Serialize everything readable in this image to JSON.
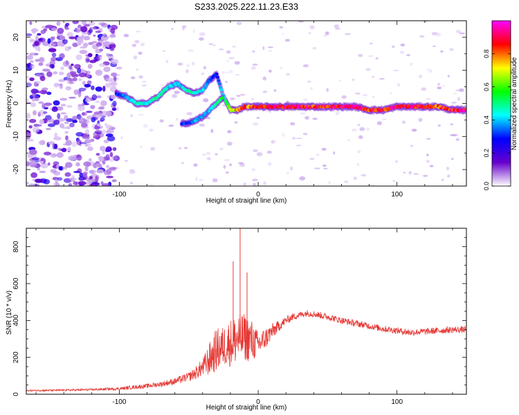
{
  "title": "S233.2025.222.11.23.E33",
  "chart_data": [
    {
      "type": "heatmap",
      "xlabel": "Height of straight line (km)",
      "ylabel": "Frequency (Hz)",
      "xlim": [
        -167,
        150
      ],
      "ylim": [
        -25,
        25
      ],
      "x_ticks": [
        -100,
        0,
        100
      ],
      "y_ticks": [
        -20,
        -10,
        0,
        10,
        20
      ],
      "colorbar": {
        "label": "Normalized spectral amplitude",
        "range": [
          0,
          1
        ],
        "ticks": [
          "0.0",
          "0.2",
          "0.4",
          "0.6",
          "0.8"
        ],
        "stops": [
          "#ffffff",
          "#6600cc",
          "#0000ff",
          "#00ffff",
          "#00ff00",
          "#ffff00",
          "#ff0000",
          "#ff00ff"
        ]
      },
      "noise_region_x": [
        -167,
        -102
      ],
      "ridge": {
        "x": [
          -102,
          -95,
          -88,
          -80,
          -72,
          -65,
          -58,
          -52,
          -46,
          -40,
          -35,
          -30,
          -25,
          -20,
          -15,
          -10,
          -5,
          0,
          10,
          20,
          30,
          40,
          50,
          60,
          70,
          80,
          90,
          100,
          110,
          120,
          130,
          140,
          150
        ],
        "frequency": [
          3,
          2,
          0,
          0,
          2,
          5,
          6,
          4,
          3,
          4,
          7,
          9,
          2,
          -2,
          -2,
          -1,
          -1,
          -1,
          -1,
          -1,
          -1,
          -1,
          -1,
          -1,
          -1,
          -2,
          -2,
          -1,
          -1,
          -1,
          -1,
          -2,
          -2
        ],
        "amplitude": [
          0.3,
          0.4,
          0.5,
          0.45,
          0.5,
          0.45,
          0.4,
          0.5,
          0.5,
          0.45,
          0.35,
          0.3,
          0.45,
          0.7,
          0.8,
          0.85,
          0.85,
          0.9,
          0.95,
          0.9,
          0.95,
          0.9,
          0.9,
          0.95,
          0.95,
          0.9,
          0.9,
          0.95,
          0.95,
          0.9,
          0.85,
          0.9,
          0.95
        ]
      },
      "lower_branch": {
        "x": [
          -55,
          -50,
          -45,
          -40,
          -35,
          -30,
          -25
        ],
        "frequency": [
          -6,
          -6,
          -5,
          -4,
          -2,
          0,
          2
        ],
        "amplitude": [
          0.3,
          0.35,
          0.4,
          0.4,
          0.4,
          0.5,
          0.55
        ]
      }
    },
    {
      "type": "line",
      "xlabel": "Height of straight line (km)",
      "ylabel": "SNR (10 * v/v)",
      "xlim": [
        -167,
        150
      ],
      "ylim": [
        0,
        900
      ],
      "x_ticks": [
        -100,
        0,
        100
      ],
      "y_ticks": [
        0,
        200,
        400,
        600,
        800
      ],
      "color": "#e53935",
      "series": [
        {
          "x": [
            -167,
            -140,
            -120,
            -100,
            -90,
            -80,
            -70,
            -60,
            -50,
            -45,
            -40,
            -35,
            -30,
            -25,
            -20,
            -15,
            -10,
            -5,
            0,
            5,
            10,
            15,
            20,
            25,
            30,
            35,
            40,
            50,
            60,
            70,
            80,
            90,
            100,
            110,
            120,
            130,
            140,
            150
          ],
          "y": [
            20,
            22,
            25,
            30,
            38,
            45,
            55,
            70,
            95,
            115,
            145,
            190,
            240,
            260,
            280,
            300,
            310,
            290,
            270,
            300,
            340,
            370,
            400,
            420,
            430,
            440,
            435,
            420,
            400,
            385,
            370,
            355,
            345,
            335,
            340,
            345,
            350,
            350
          ],
          "noise": [
            4,
            5,
            6,
            8,
            10,
            12,
            14,
            18,
            24,
            35,
            50,
            90,
            120,
            110,
            130,
            140,
            130,
            120,
            70,
            60,
            45,
            30,
            22,
            20,
            18,
            18,
            18,
            18,
            18,
            18,
            18,
            18,
            18,
            18,
            18,
            18,
            18,
            18
          ]
        }
      ],
      "peaks": [
        {
          "x": -13,
          "y": 900
        },
        {
          "x": -18,
          "y": 720
        },
        {
          "x": -8,
          "y": 660
        }
      ]
    }
  ]
}
